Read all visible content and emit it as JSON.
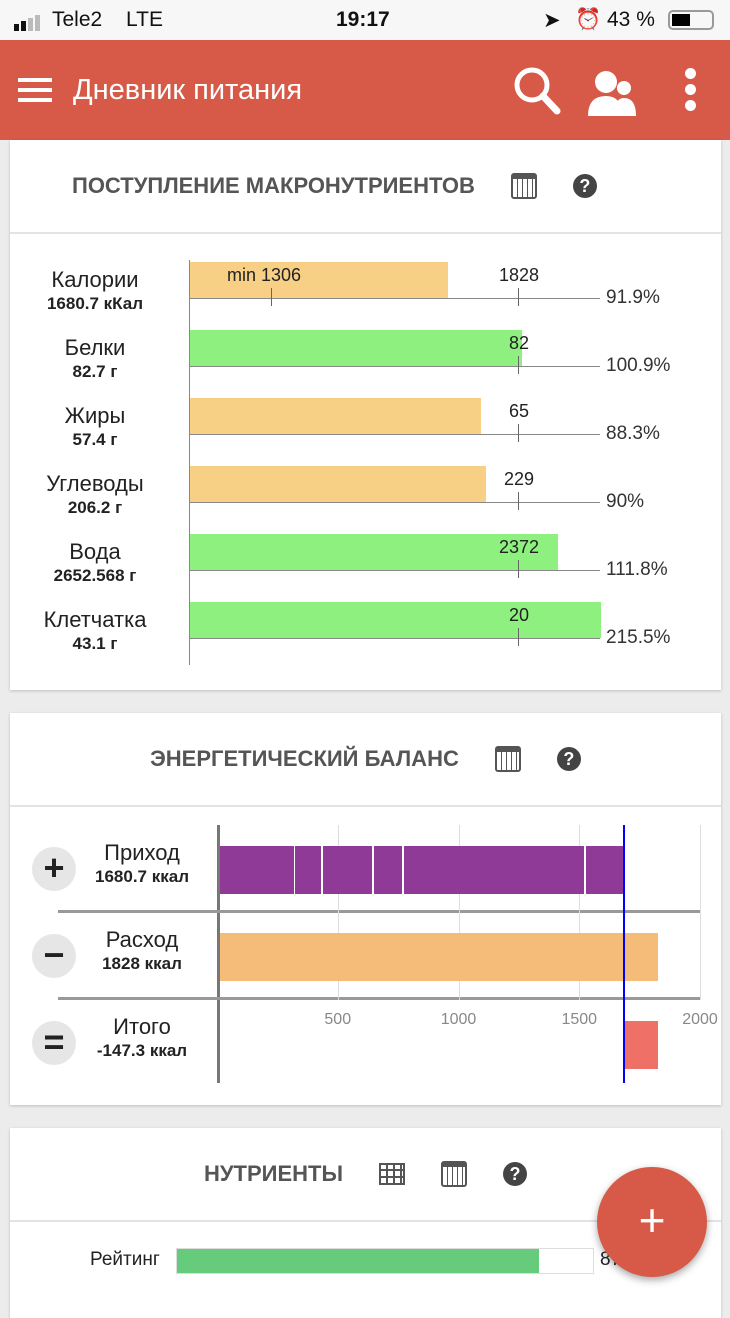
{
  "status": {
    "carrier": "Tele2",
    "network": "LTE",
    "time": "19:17",
    "battery": "43 %"
  },
  "appbar": {
    "title": "Дневник питания",
    "icons": [
      "menu-icon",
      "search-icon",
      "users-icon",
      "more-icon"
    ],
    "color": "#d65a47"
  },
  "macro": {
    "title": "ПОСТУПЛЕНИЕ МАКРОНУТРИЕНТОВ",
    "min_label": "min 1306",
    "rows": [
      {
        "name": "Калории",
        "value": "1680.7 кКал",
        "target": "1828",
        "pct": "91.9%",
        "fill": 0.919,
        "color": "#f7cf85"
      },
      {
        "name": "Белки",
        "value": "82.7 г",
        "target": "82",
        "pct": "100.9%",
        "fill": 1.009,
        "color": "#8ef07e"
      },
      {
        "name": "Жиры",
        "value": "57.4 г",
        "target": "65",
        "pct": "88.3%",
        "fill": 0.883,
        "color": "#f7cf85"
      },
      {
        "name": "Углеводы",
        "value": "206.2 г",
        "target": "229",
        "pct": "90%",
        "fill": 0.9,
        "color": "#f7cf85"
      },
      {
        "name": "Вода",
        "value": "2652.568 г",
        "target": "2372",
        "pct": "111.8%",
        "fill": 1.118,
        "color": "#8ef07e"
      },
      {
        "name": "Клетчатка",
        "value": "43.1 г",
        "target": "20",
        "pct": "215.5%",
        "fill": 2.155,
        "color": "#8ef07e"
      }
    ]
  },
  "energy": {
    "title": "ЭНЕРГЕТИЧЕСКИЙ БАЛАНС",
    "rows": [
      {
        "sign": "+",
        "name": "Приход",
        "value": "1680.7 ккал"
      },
      {
        "sign": "−",
        "name": "Расход",
        "value": "1828 ккал"
      },
      {
        "sign": "=",
        "name": "Итого",
        "value": "-147.3 ккал"
      }
    ],
    "intake_segments": [
      315,
      431,
      642,
      766,
      1520,
      1680.7
    ],
    "expense": 1828,
    "intake": 1680.7,
    "ticks": [
      "500",
      "1000",
      "1500",
      "2000"
    ],
    "xmax": 2000,
    "colors": {
      "intake": "#8e3a96",
      "expense": "#f5bb78",
      "deficit": "#ee7067",
      "line": "#0000ff"
    }
  },
  "nutrients": {
    "title": "НУТРИЕНТЫ",
    "rating_label": "Рейтинг",
    "rating_value": "87",
    "rating_fill": 0.87,
    "color": "#66cb7a"
  },
  "fab": {
    "label": "+"
  }
}
